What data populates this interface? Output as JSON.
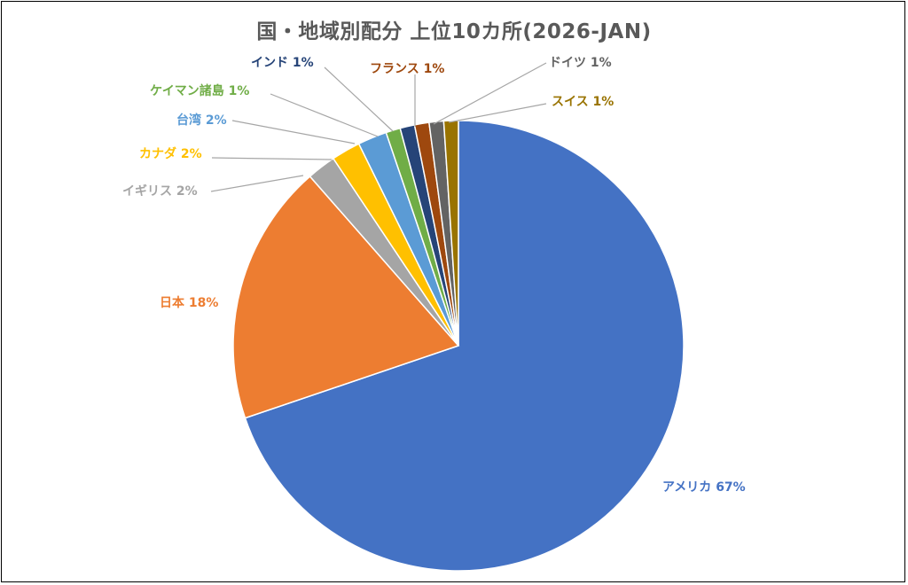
{
  "chart_data": {
    "type": "pie",
    "title": "国・地域別配分 上位10カ所(2026-JAN)",
    "start_angle_deg": 0,
    "direction": "clockwise",
    "slices": [
      {
        "name": "アメリカ",
        "value": 67,
        "label": "67%",
        "color": "#4472C4"
      },
      {
        "name": "日本",
        "value": 18,
        "label": "18%",
        "color": "#ED7D31"
      },
      {
        "name": "イギリス",
        "value": 2,
        "label": "2%",
        "color": "#A5A5A5"
      },
      {
        "name": "カナダ",
        "value": 2,
        "label": "2%",
        "color": "#FFC000"
      },
      {
        "name": "台湾",
        "value": 2,
        "label": "2%",
        "color": "#5B9BD5"
      },
      {
        "name": "ケイマン諸島",
        "value": 1,
        "label": "1%",
        "color": "#70AD47"
      },
      {
        "name": "インド",
        "value": 1,
        "label": "1%",
        "color": "#264478"
      },
      {
        "name": "フランス",
        "value": 1,
        "label": "1%",
        "color": "#9E480E"
      },
      {
        "name": "ドイツ",
        "value": 1,
        "label": "1%",
        "color": "#636363"
      },
      {
        "name": "スイス",
        "value": 1,
        "label": "1%",
        "color": "#997300"
      }
    ]
  }
}
